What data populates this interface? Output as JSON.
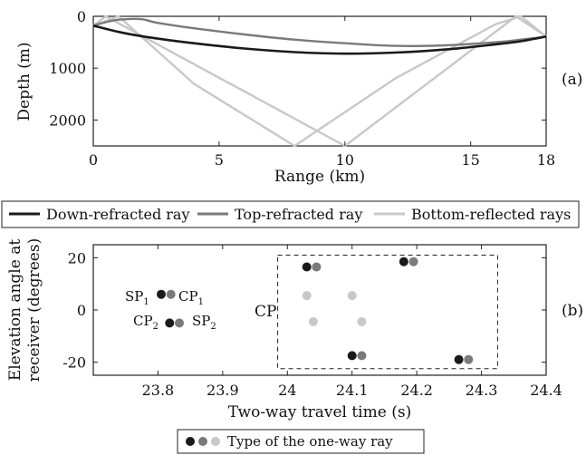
{
  "colors": {
    "down": "#1a1a1a",
    "top": "#7a7a7a",
    "bottom": "#c8c8c8",
    "axis": "#222222"
  },
  "chart_data": [
    {
      "type": "line",
      "panel_label": "(a)",
      "xlabel": "Range (km)",
      "ylabel": "Depth (m)",
      "xlim": [
        0,
        18
      ],
      "ylim": [
        0,
        2500
      ],
      "y_inverted": true,
      "xticks": [
        0,
        5,
        10,
        15,
        18
      ],
      "yticks": [
        0,
        1000,
        2000
      ],
      "series": [
        {
          "name": "Down-refracted ray",
          "color_key": "down",
          "x": [
            0,
            1,
            2,
            4,
            6,
            8,
            10,
            12,
            14,
            16,
            17,
            18
          ],
          "y": [
            180,
            300,
            390,
            520,
            620,
            690,
            720,
            700,
            640,
            540,
            480,
            390
          ]
        },
        {
          "name": "Top-refracted ray",
          "color_key": "top",
          "x": [
            0,
            0.8,
            1.5,
            2.0,
            2.5,
            4,
            6,
            8,
            10,
            12,
            14,
            16,
            17,
            18
          ],
          "y": [
            180,
            80,
            50,
            60,
            120,
            230,
            350,
            450,
            520,
            570,
            560,
            500,
            450,
            390
          ]
        },
        {
          "name": "Bottom-reflected rays",
          "color_key": "bottom",
          "x": [
            0,
            1,
            4,
            8,
            12,
            16,
            17,
            18
          ],
          "y": [
            180,
            0,
            1300,
            2500,
            1200,
            150,
            0,
            390
          ]
        },
        {
          "name": "",
          "color_key": "bottom",
          "x": [
            0,
            0.5,
            10,
            16.8,
            18
          ],
          "y": [
            180,
            0,
            2500,
            0,
            390
          ]
        }
      ]
    },
    {
      "type": "scatter",
      "panel_label": "(b)",
      "xlabel": "Two-way travel time (s)",
      "ylabel_lines": [
        "Elevation angle at",
        "receiver (degrees)"
      ],
      "xlim": [
        23.7,
        24.4
      ],
      "ylim": [
        -25,
        25
      ],
      "xticks": [
        "23.8",
        "23.9",
        "24",
        "24.1",
        "24.2",
        "24.3",
        "24.4"
      ],
      "yticks": [
        -20,
        0,
        20
      ],
      "points": [
        {
          "x": 24.03,
          "y": 16.5,
          "color_key": "down"
        },
        {
          "x": 24.045,
          "y": 16.5,
          "color_key": "top"
        },
        {
          "x": 24.18,
          "y": 18.5,
          "color_key": "down"
        },
        {
          "x": 24.195,
          "y": 18.5,
          "color_key": "top"
        },
        {
          "x": 24.03,
          "y": 5.5,
          "color_key": "bottom"
        },
        {
          "x": 24.1,
          "y": 5.5,
          "color_key": "bottom"
        },
        {
          "x": 24.04,
          "y": -4.5,
          "color_key": "bottom"
        },
        {
          "x": 24.115,
          "y": -4.5,
          "color_key": "bottom"
        },
        {
          "x": 24.1,
          "y": -17.5,
          "color_key": "down"
        },
        {
          "x": 24.115,
          "y": -17.5,
          "color_key": "top"
        },
        {
          "x": 24.265,
          "y": -19,
          "color_key": "down"
        },
        {
          "x": 24.28,
          "y": -19,
          "color_key": "top"
        },
        {
          "x": 23.805,
          "y": 6,
          "color_key": "down"
        },
        {
          "x": 23.82,
          "y": 6,
          "color_key": "top"
        },
        {
          "x": 23.818,
          "y": -5,
          "color_key": "down"
        },
        {
          "x": 23.833,
          "y": -5,
          "color_key": "top"
        }
      ],
      "box": {
        "x0": 23.985,
        "x1": 24.325,
        "y0": -22.5,
        "y1": 21
      },
      "annotations": {
        "cp_label": "CP",
        "sp1": "SP",
        "sp1_sub": "1",
        "cp1": "CP",
        "cp1_sub": "1",
        "cp2": "CP",
        "cp2_sub": "2",
        "sp2": "SP",
        "sp2_sub": "2"
      }
    }
  ],
  "legend_a": {
    "items": [
      {
        "label": "Down-refracted ray",
        "color_key": "down"
      },
      {
        "label": "Top-refracted ray",
        "color_key": "top"
      },
      {
        "label": "Bottom-reflected rays",
        "color_key": "bottom"
      }
    ]
  },
  "legend_b": {
    "label": "Type of the one-way ray",
    "dot_keys": [
      "down",
      "top",
      "bottom"
    ]
  }
}
